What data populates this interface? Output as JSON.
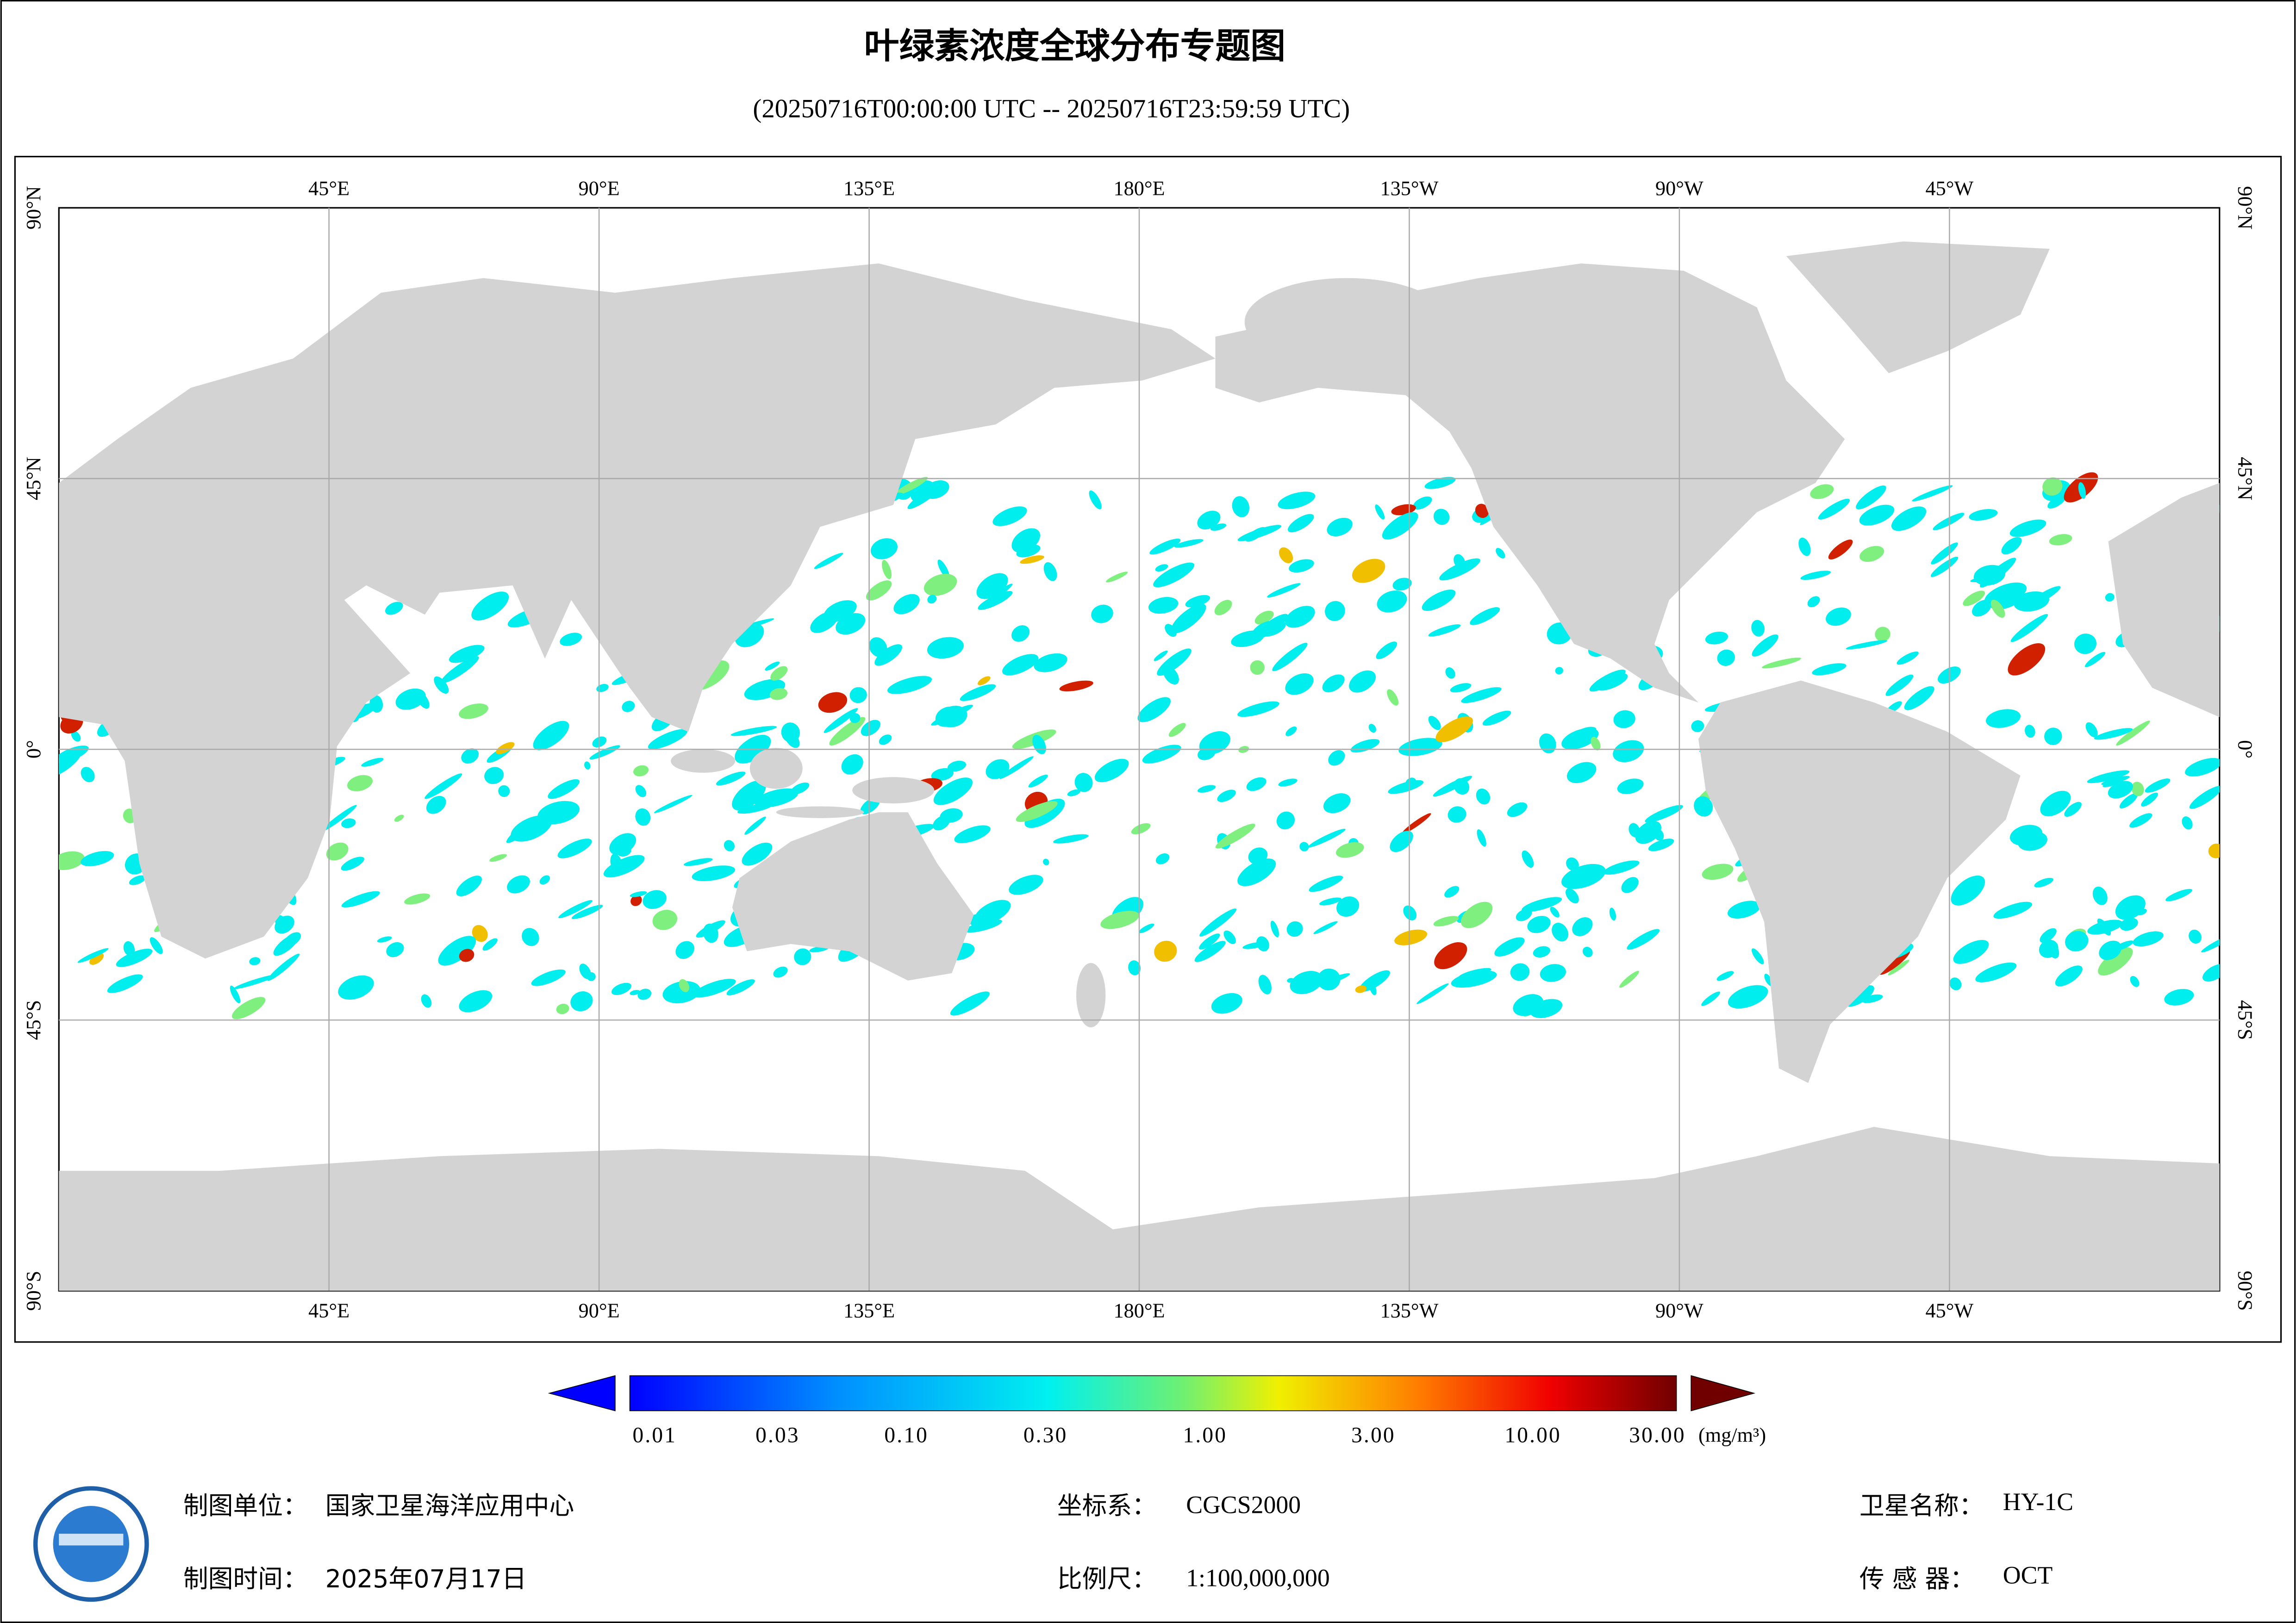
{
  "title": "叶绿素浓度全球分布专题图",
  "subtitle": "(20250716T00:00:00 UTC -- 20250716T23:59:59 UTC)",
  "map": {
    "lon_labels": [
      "45°E",
      "90°E",
      "135°E",
      "180°E",
      "135°W",
      "90°W",
      "45°W"
    ],
    "lat_labels": [
      "90°N",
      "45°N",
      "0°",
      "45°S",
      "90°S"
    ]
  },
  "colorbar": {
    "labels": [
      "0.01",
      "0.03",
      "0.10",
      "0.30",
      "1.00",
      "3.00",
      "10.00",
      "30.00"
    ],
    "unit": "(mg/m³)"
  },
  "footer": {
    "unit_label": "制图单位：",
    "unit": "国家卫星海洋应用中心",
    "date_label": "制图时间：",
    "date": "2025年07月17日",
    "crs_label": "坐标系：",
    "crs": "CGCS2000",
    "scale_label": "比例尺：",
    "scale": "1:100,000,000",
    "satellite_label": "卫星名称：",
    "satellite": "HY-1C",
    "sensor_label": "传 感 器：",
    "sensor": "OCT"
  }
}
